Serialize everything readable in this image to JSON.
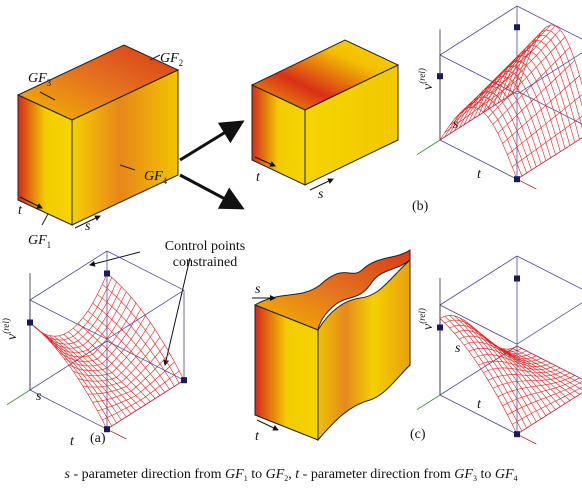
{
  "figure": {
    "faces": {
      "gf1": {
        "base": "GF",
        "sub": "1"
      },
      "gf2": {
        "base": "GF",
        "sub": "2"
      },
      "gf3": {
        "base": "GF",
        "sub": "3"
      },
      "gf4": {
        "base": "GF",
        "sub": "4"
      }
    },
    "param_s": "s",
    "param_t": "t",
    "vertical_axis": {
      "base": "v",
      "sup": "(rel)"
    },
    "annotation": [
      "Control points",
      "constrained"
    ],
    "panel_labels": [
      "(a)",
      "(b)",
      "(c)"
    ],
    "caption": [
      {
        "text": "s",
        "style": "italic"
      },
      {
        "text": " - parameter direction from ",
        "style": "normal"
      },
      {
        "text": "GF",
        "style": "italic"
      },
      {
        "text": "1",
        "style": "sub"
      },
      {
        "text": " to ",
        "style": "normal"
      },
      {
        "text": "GF",
        "style": "italic"
      },
      {
        "text": "2",
        "style": "sub"
      },
      {
        "text": ", ",
        "style": "normal"
      },
      {
        "text": "t",
        "style": "italic"
      },
      {
        "text": " - parameter direction from ",
        "style": "normal"
      },
      {
        "text": "GF",
        "style": "italic"
      },
      {
        "text": "3",
        "style": "sub"
      },
      {
        "text": " to ",
        "style": "normal"
      },
      {
        "text": "GF",
        "style": "italic"
      },
      {
        "text": "4",
        "style": "sub"
      }
    ]
  }
}
